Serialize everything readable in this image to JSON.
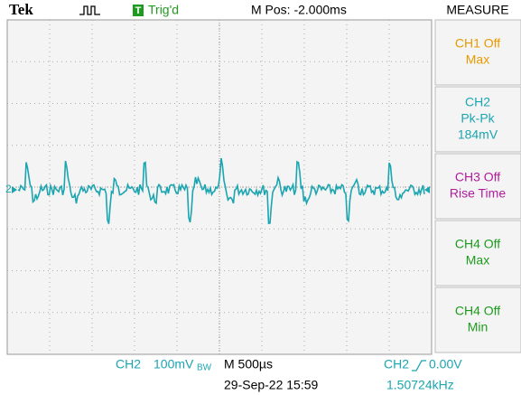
{
  "header": {
    "brand": "Tek",
    "trigger_icon": "T",
    "trigger_status": "Trig'd",
    "position": "M Pos: -2.000ms",
    "menu": "MEASURE"
  },
  "measure": [
    {
      "lines": [
        "CH1 Off",
        "Max"
      ],
      "color": "#e89a00"
    },
    {
      "lines": [
        "CH2",
        "Pk-Pk",
        "184mV"
      ],
      "color": "#1ba5b0"
    },
    {
      "lines": [
        "CH3 Off",
        "Rise Time"
      ],
      "color": "#b01c9c"
    },
    {
      "lines": [
        "CH4 Off",
        "Max"
      ],
      "color": "#1e9a1e"
    },
    {
      "lines": [
        "CH4 Off",
        "Min"
      ],
      "color": "#1e9a1e"
    }
  ],
  "channel_marker": "2",
  "footer": {
    "channel": "CH2",
    "scale": "100mV",
    "bw_limit": "BW",
    "timebase": "M 500µs",
    "date": "29-Sep-22 15:59",
    "trigger_source": "CH2",
    "trigger_level": "0.00V",
    "frequency": "1.50724kHz"
  }
}
